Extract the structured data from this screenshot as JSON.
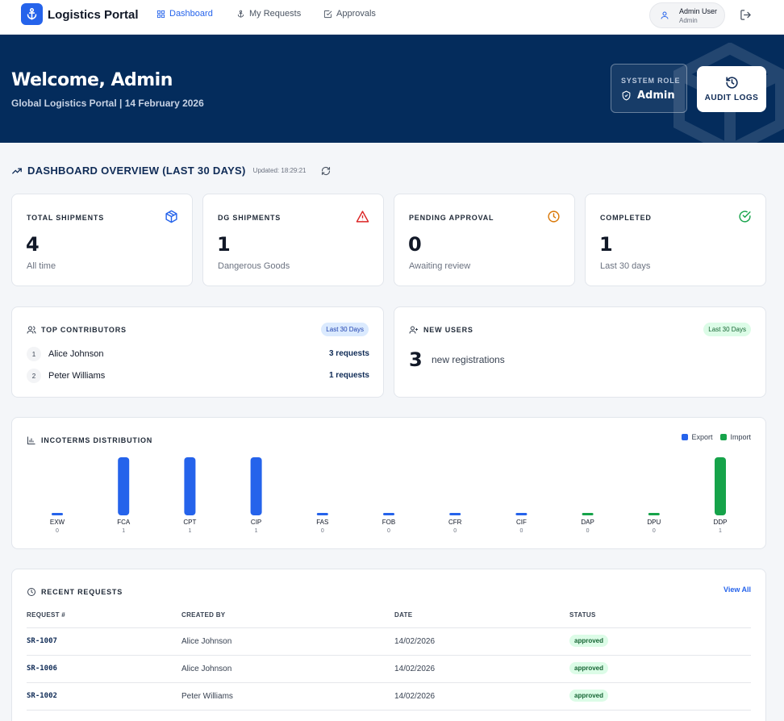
{
  "brand": {
    "name": "Logistics Portal"
  },
  "nav": [
    {
      "label": "Dashboard",
      "active": true
    },
    {
      "label": "My Requests",
      "active": false
    },
    {
      "label": "Approvals",
      "active": false
    }
  ],
  "user": {
    "name": "Admin User",
    "role": "Admin"
  },
  "hero": {
    "title": "Welcome, Admin",
    "subtitle": "Global Logistics Portal | 14 February 2026",
    "role_label": "SYSTEM ROLE",
    "role_value": "Admin",
    "audit_label": "AUDIT LOGS"
  },
  "overview": {
    "title": "DASHBOARD OVERVIEW (LAST 30 DAYS)",
    "updated": "Updated: 18:29:21"
  },
  "stats": [
    {
      "label": "TOTAL SHIPMENTS",
      "value": "4",
      "sub": "All time",
      "icon": "package-icon",
      "color": "#2563eb"
    },
    {
      "label": "DG SHIPMENTS",
      "value": "1",
      "sub": "Dangerous Goods",
      "icon": "warning-icon",
      "color": "#dc2626"
    },
    {
      "label": "PENDING APPROVAL",
      "value": "0",
      "sub": "Awaiting review",
      "icon": "clock-icon",
      "color": "#d97706"
    },
    {
      "label": "COMPLETED",
      "value": "1",
      "sub": "Last 30 days",
      "icon": "check-circle-icon",
      "color": "#16a34a"
    }
  ],
  "contributors": {
    "title": "TOP CONTRIBUTORS",
    "range": "Last 30 Days",
    "items": [
      {
        "rank": "1",
        "name": "Alice Johnson",
        "requests": "3 requests"
      },
      {
        "rank": "2",
        "name": "Peter Williams",
        "requests": "1 requests"
      }
    ]
  },
  "new_users": {
    "title": "NEW USERS",
    "range": "Last 30 Days",
    "value": "3",
    "text": "new registrations"
  },
  "incoterms": {
    "title": "INCOTERMS DISTRIBUTION",
    "legend_export": "Export",
    "legend_import": "Import"
  },
  "chart_data": {
    "type": "bar",
    "categories": [
      "EXW",
      "FCA",
      "CPT",
      "CIP",
      "FAS",
      "FOB",
      "CFR",
      "CIF",
      "DAP",
      "DPU",
      "DDP"
    ],
    "values": [
      0,
      1,
      1,
      1,
      0,
      0,
      0,
      0,
      0,
      0,
      1
    ],
    "groups": [
      "Export",
      "Export",
      "Export",
      "Export",
      "Export",
      "Export",
      "Export",
      "Export",
      "Import",
      "Import",
      "Import"
    ],
    "colors": {
      "Export": "#2563eb",
      "Import": "#16a34a"
    },
    "ylim": [
      0,
      1
    ],
    "legend": "top-right"
  },
  "recent": {
    "title": "RECENT REQUESTS",
    "view_all": "View All",
    "columns": [
      "REQUEST #",
      "CREATED BY",
      "DATE",
      "STATUS"
    ],
    "rows": [
      {
        "id": "SR-1007",
        "by": "Alice Johnson",
        "date": "14/02/2026",
        "status": "approved"
      },
      {
        "id": "SR-1006",
        "by": "Alice Johnson",
        "date": "14/02/2026",
        "status": "approved"
      },
      {
        "id": "SR-1002",
        "by": "Peter Williams",
        "date": "14/02/2026",
        "status": "approved"
      }
    ]
  }
}
